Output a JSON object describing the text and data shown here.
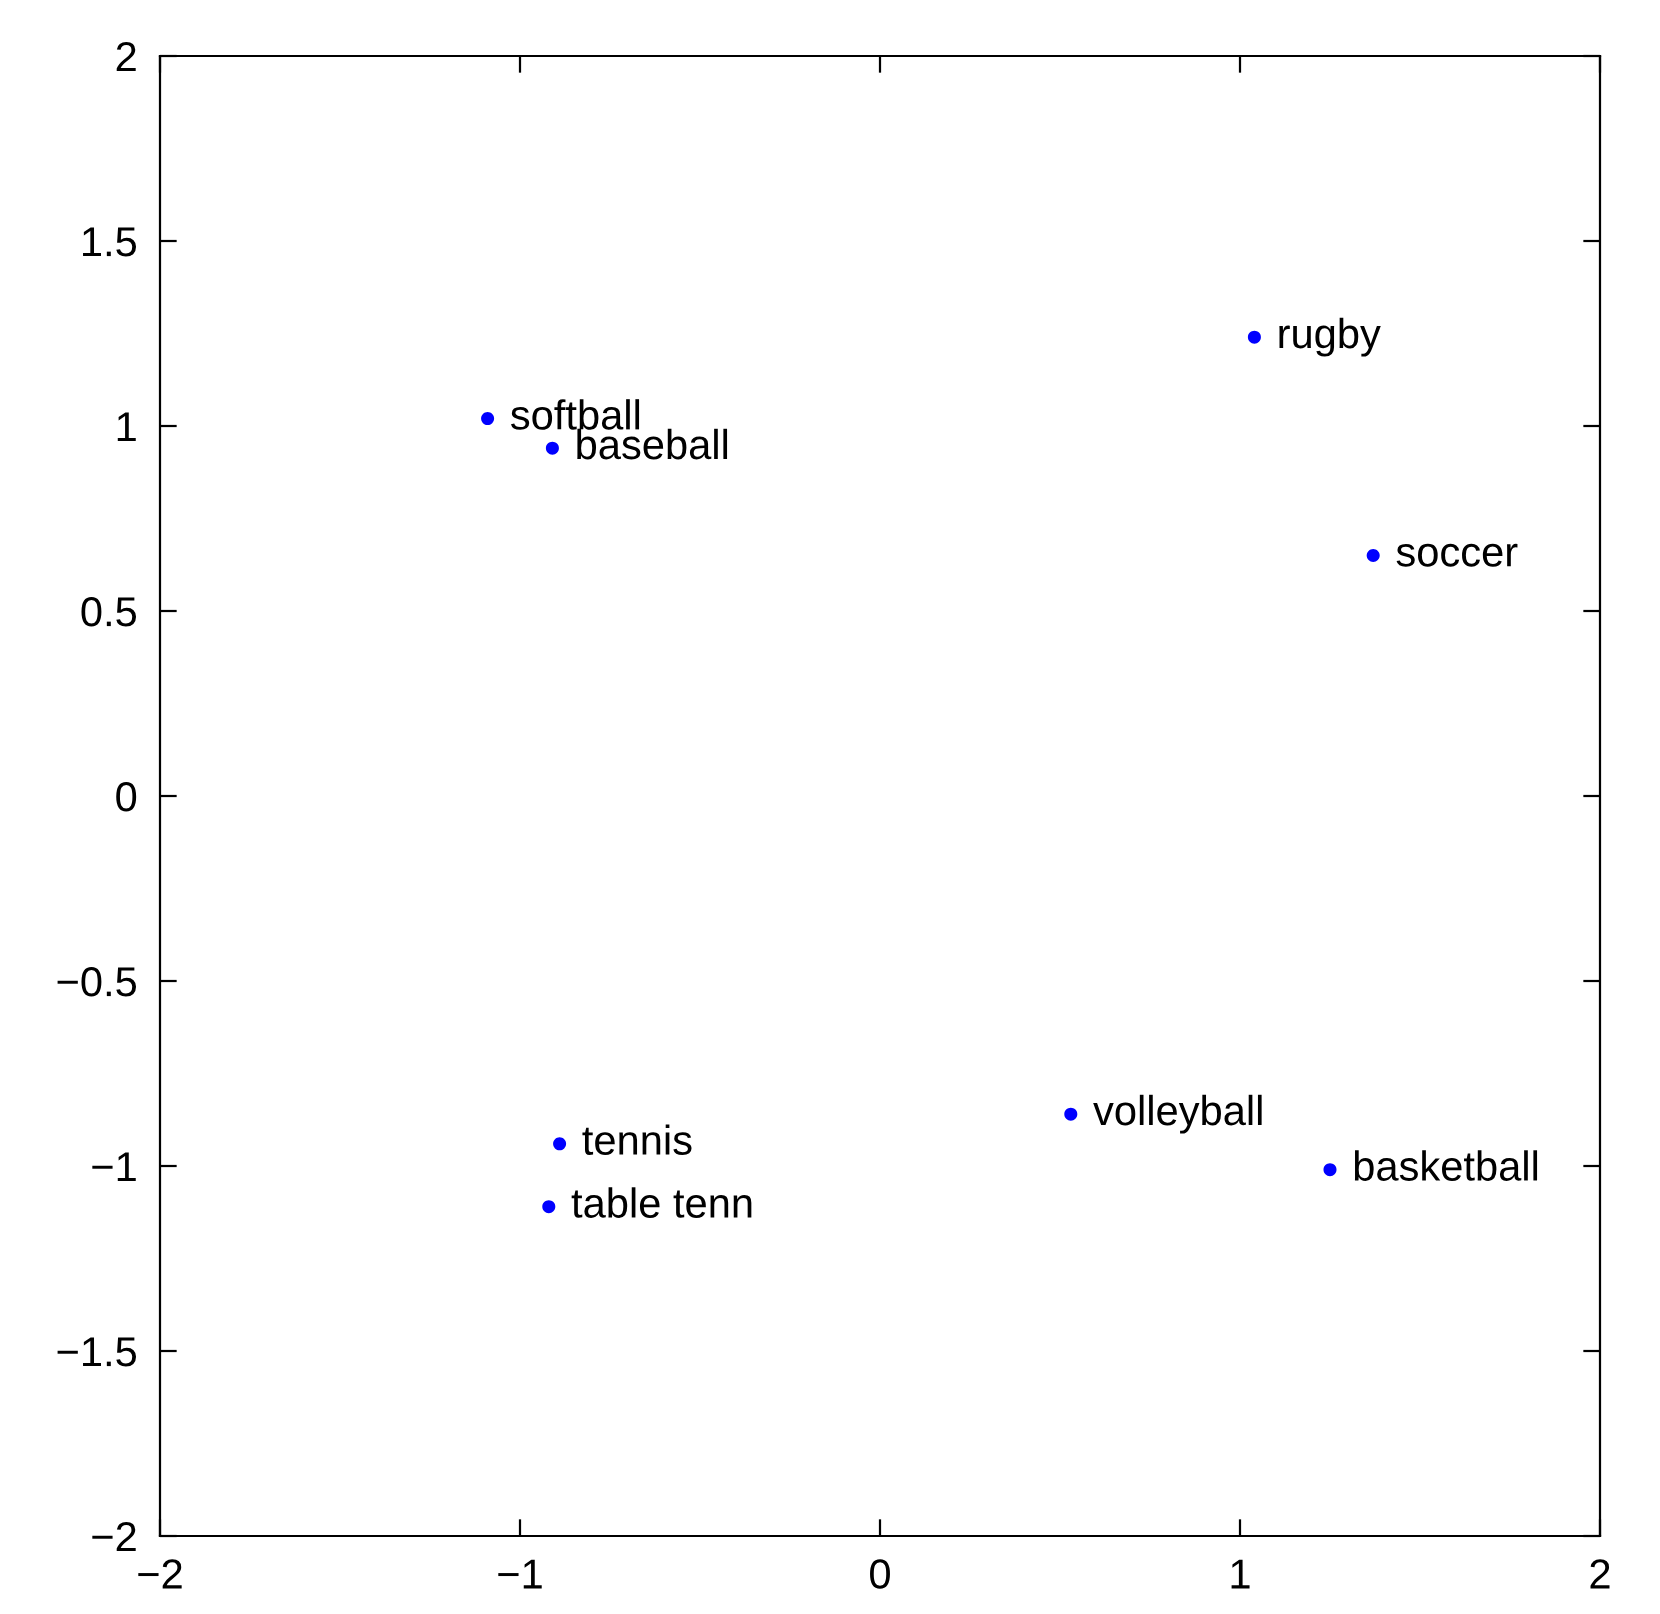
{
  "chart_data": {
    "type": "scatter",
    "x": [
      -1.09,
      -0.91,
      1.04,
      1.37,
      -0.89,
      -0.92,
      0.53,
      1.25
    ],
    "series": [
      {
        "color": "#0000ff",
        "values": [
          1.02,
          0.94,
          1.24,
          0.65,
          -0.94,
          -1.11,
          -0.86,
          -1.01
        ]
      }
    ],
    "annotations": [
      {
        "text": "softball",
        "x": -1.09,
        "y": 1.02
      },
      {
        "text": "baseball",
        "x": -0.91,
        "y": 0.94
      },
      {
        "text": "rugby",
        "x": 1.04,
        "y": 1.24
      },
      {
        "text": "soccer",
        "x": 1.37,
        "y": 0.65
      },
      {
        "text": "tennis",
        "x": -0.89,
        "y": -0.94
      },
      {
        "text": "table tenn",
        "x": -0.92,
        "y": -1.11
      },
      {
        "text": "volleyball",
        "x": 0.53,
        "y": -0.86
      },
      {
        "text": "basketball",
        "x": 1.25,
        "y": -1.01
      }
    ],
    "xlim": [
      -2,
      2
    ],
    "ylim": [
      -2,
      2
    ],
    "xticks": [
      {
        "value": -2,
        "label": "−2"
      },
      {
        "value": -1,
        "label": "−1"
      },
      0,
      1,
      2
    ],
    "yticks": [
      {
        "value": -2,
        "label": "−2"
      },
      {
        "value": -1.5,
        "label": "−1.5"
      },
      {
        "value": -1,
        "label": "−1"
      },
      {
        "value": -0.5,
        "label": "−0.5"
      },
      0,
      0.5,
      1,
      1.5,
      2
    ],
    "grid": false,
    "marker": "circle"
  }
}
